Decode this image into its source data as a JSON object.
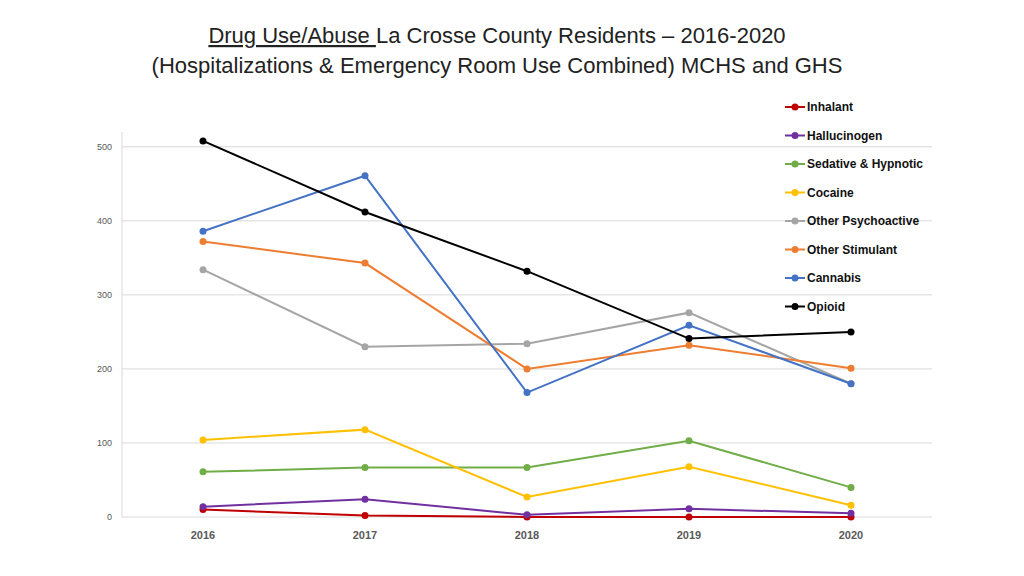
{
  "chart_data": {
    "type": "line",
    "title": "Drug Use/Abuse La Crosse County Residents – 2016-2020",
    "subtitle": "(Hospitalizations & Emergency Room Use Combined) MCHS and GHS",
    "categories": [
      "2016",
      "2017",
      "2018",
      "2019",
      "2020"
    ],
    "series": [
      {
        "name": "Inhalant",
        "color": "#c00000",
        "values": [
          10,
          2,
          0,
          0,
          0
        ]
      },
      {
        "name": "Hallucinogen",
        "color": "#7030a0",
        "values": [
          14,
          24,
          3,
          11,
          5
        ]
      },
      {
        "name": "Sedative & Hypnotic",
        "color": "#70ad47",
        "values": [
          61,
          67,
          67,
          103,
          40
        ]
      },
      {
        "name": "Cocaine",
        "color": "#ffc000",
        "values": [
          104,
          118,
          27,
          68,
          16
        ]
      },
      {
        "name": "Other Psychoactive",
        "color": "#a5a5a5",
        "values": [
          334,
          230,
          234,
          276,
          180
        ]
      },
      {
        "name": "Other Stimulant",
        "color": "#ed7d31",
        "values": [
          372,
          343,
          200,
          232,
          201
        ]
      },
      {
        "name": "Cannabis",
        "color": "#4472c4",
        "values": [
          386,
          461,
          168,
          259,
          180
        ]
      },
      {
        "name": "Opioid",
        "color": "#000000",
        "values": [
          508,
          412,
          332,
          241,
          250
        ]
      }
    ],
    "ylim": [
      0,
      520
    ],
    "yticks": [
      0,
      100,
      200,
      300,
      400,
      500
    ],
    "grid": true,
    "legend": "right",
    "marker": "circle",
    "line_style": "solid"
  }
}
